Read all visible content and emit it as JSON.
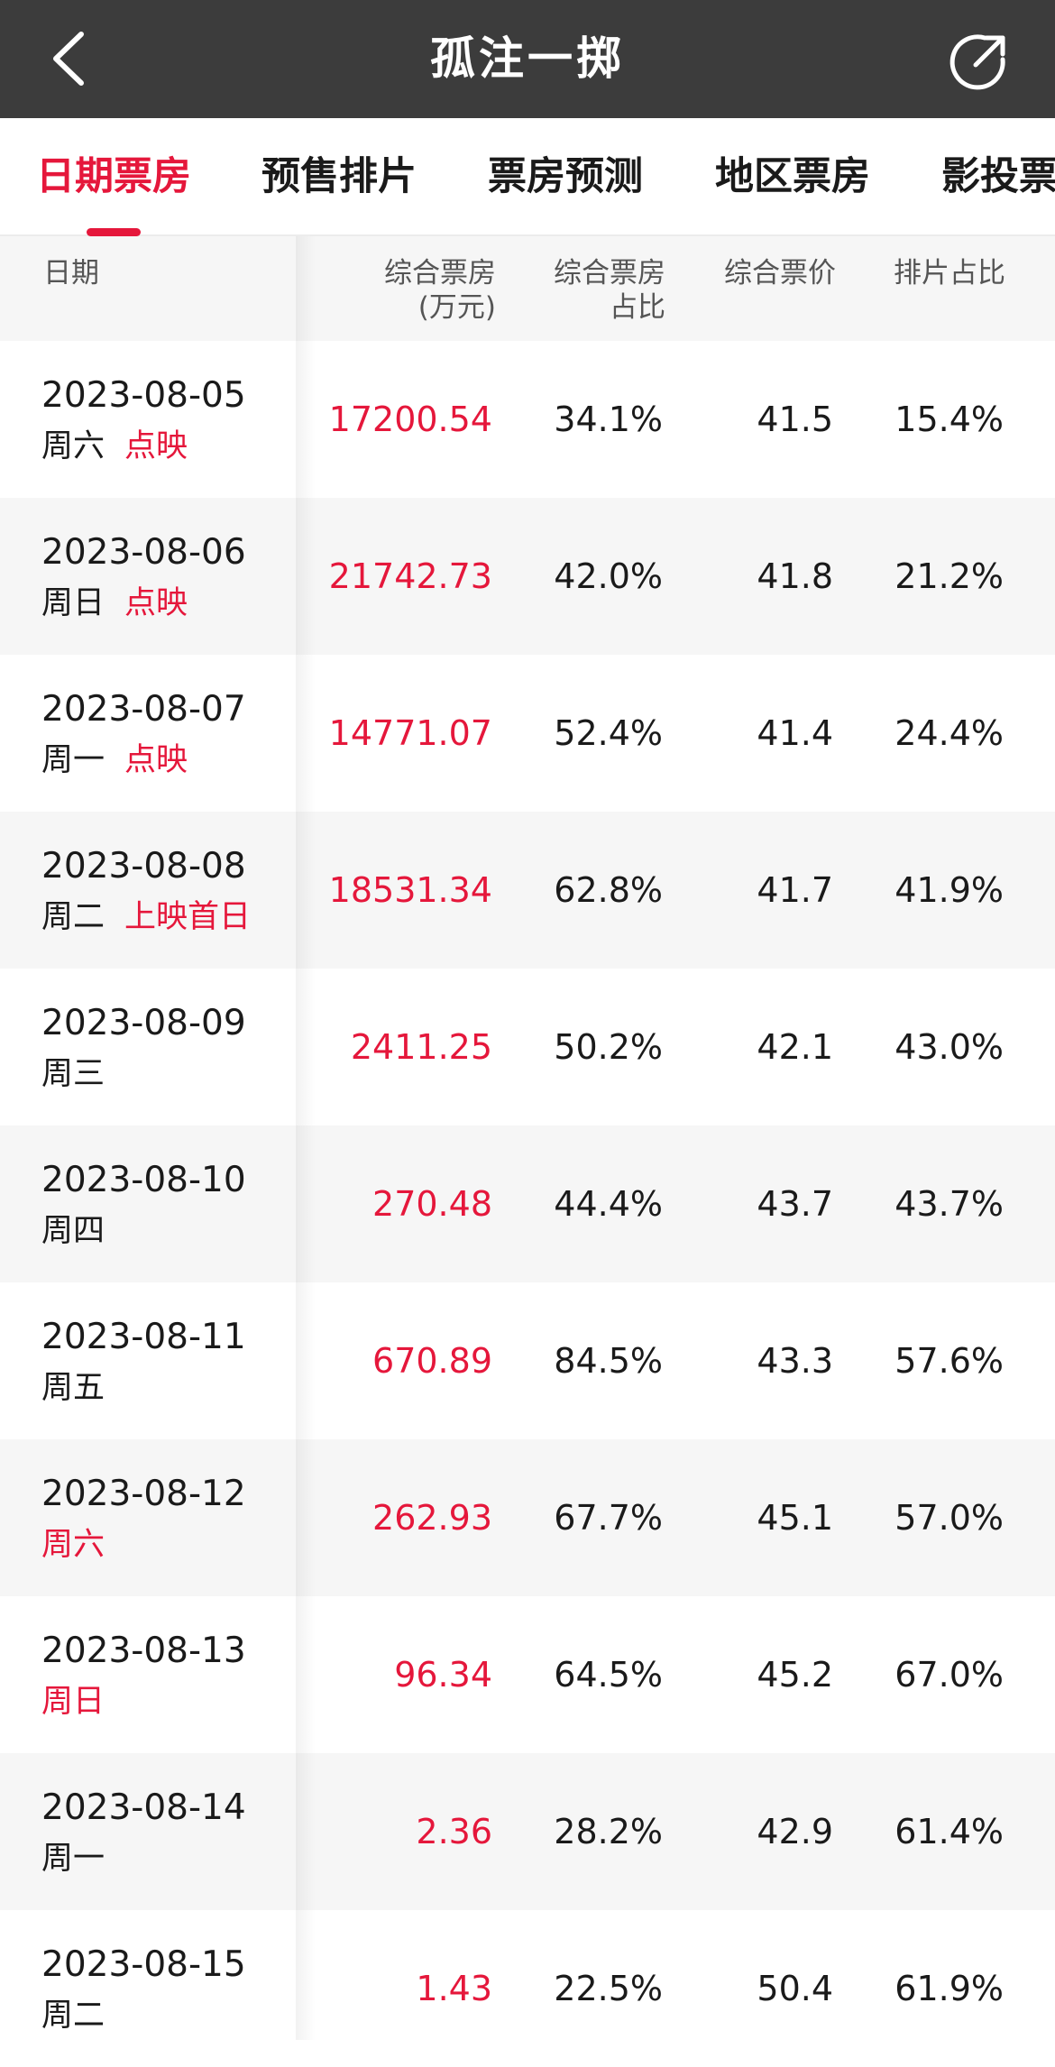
{
  "header": {
    "title": "孤注一掷",
    "back_icon": "chevron-left-icon",
    "share_icon": "share-icon"
  },
  "tabs": [
    {
      "label": "日期票房",
      "active": true
    },
    {
      "label": "预售排片",
      "active": false
    },
    {
      "label": "票房预测",
      "active": false
    },
    {
      "label": "地区票房",
      "active": false
    },
    {
      "label": "影投票",
      "active": false
    }
  ],
  "columns": {
    "date": "日期",
    "box_line1": "综合票房",
    "box_line2": "(万元)",
    "share_line1": "综合票房",
    "share_line2": "占比",
    "price": "综合票价",
    "schedule": "排片占比"
  },
  "colors": {
    "accent": "#e5173b",
    "header_bg": "#3c3c3c"
  },
  "rows": [
    {
      "date": "2023-08-05",
      "weekday": "周六",
      "weekday_red": false,
      "tag": "点映",
      "box": "17200.54",
      "share": "34.1%",
      "price": "41.5",
      "schedule": "15.4%"
    },
    {
      "date": "2023-08-06",
      "weekday": "周日",
      "weekday_red": false,
      "tag": "点映",
      "box": "21742.73",
      "share": "42.0%",
      "price": "41.8",
      "schedule": "21.2%"
    },
    {
      "date": "2023-08-07",
      "weekday": "周一",
      "weekday_red": false,
      "tag": "点映",
      "box": "14771.07",
      "share": "52.4%",
      "price": "41.4",
      "schedule": "24.4%"
    },
    {
      "date": "2023-08-08",
      "weekday": "周二",
      "weekday_red": false,
      "tag": "上映首日",
      "box": "18531.34",
      "share": "62.8%",
      "price": "41.7",
      "schedule": "41.9%"
    },
    {
      "date": "2023-08-09",
      "weekday": "周三",
      "weekday_red": false,
      "tag": "",
      "box": "2411.25",
      "share": "50.2%",
      "price": "42.1",
      "schedule": "43.0%"
    },
    {
      "date": "2023-08-10",
      "weekday": "周四",
      "weekday_red": false,
      "tag": "",
      "box": "270.48",
      "share": "44.4%",
      "price": "43.7",
      "schedule": "43.7%"
    },
    {
      "date": "2023-08-11",
      "weekday": "周五",
      "weekday_red": false,
      "tag": "",
      "box": "670.89",
      "share": "84.5%",
      "price": "43.3",
      "schedule": "57.6%"
    },
    {
      "date": "2023-08-12",
      "weekday": "周六",
      "weekday_red": true,
      "tag": "",
      "box": "262.93",
      "share": "67.7%",
      "price": "45.1",
      "schedule": "57.0%"
    },
    {
      "date": "2023-08-13",
      "weekday": "周日",
      "weekday_red": true,
      "tag": "",
      "box": "96.34",
      "share": "64.5%",
      "price": "45.2",
      "schedule": "67.0%"
    },
    {
      "date": "2023-08-14",
      "weekday": "周一",
      "weekday_red": false,
      "tag": "",
      "box": "2.36",
      "share": "28.2%",
      "price": "42.9",
      "schedule": "61.4%"
    },
    {
      "date": "2023-08-15",
      "weekday": "周二",
      "weekday_red": false,
      "tag": "",
      "box": "1.43",
      "share": "22.5%",
      "price": "50.4",
      "schedule": "61.9%"
    }
  ]
}
